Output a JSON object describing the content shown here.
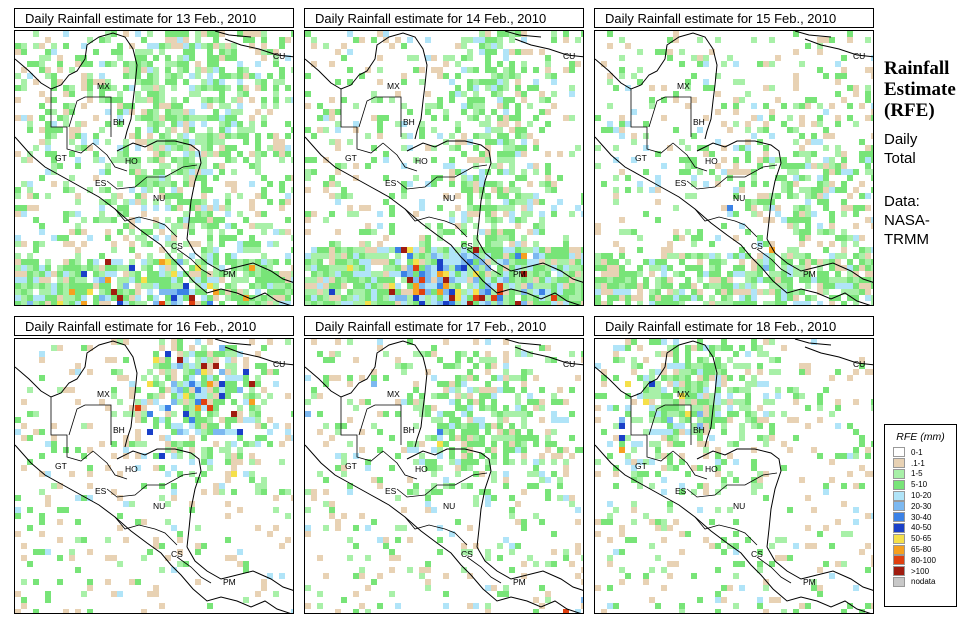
{
  "panels": [
    {
      "title": "Daily Rainfall estimate for  13 Feb., 2010",
      "intensity": "moderate"
    },
    {
      "title": "Daily Rainfall estimate for  14 Feb., 2010",
      "intensity": "heavy-south"
    },
    {
      "title": "Daily Rainfall estimate for  15 Feb., 2010",
      "intensity": "scattered"
    },
    {
      "title": "Daily Rainfall estimate for  16 Feb., 2010",
      "intensity": "north"
    },
    {
      "title": "Daily Rainfall estimate for  17 Feb., 2010",
      "intensity": "north-light"
    },
    {
      "title": "Daily Rainfall estimate for  18 Feb., 2010",
      "intensity": "northwest"
    }
  ],
  "country_labels": [
    "MX",
    "CU",
    "BH",
    "GT",
    "HO",
    "ES",
    "NU",
    "CS",
    "PM"
  ],
  "sidebar": {
    "title": "Rainfall\nEstimate\n(RFE)",
    "subtitle": "Daily\nTotal",
    "source": "Data:\nNASA-\nTRMM"
  },
  "legend": {
    "title": "RFE (mm)",
    "items": [
      {
        "label": "0-1",
        "color": "#ffffff"
      },
      {
        "label": ".1-1",
        "color": "#e8d2b4"
      },
      {
        "label": "1-5",
        "color": "#a8f0a8"
      },
      {
        "label": "5-10",
        "color": "#78e478"
      },
      {
        "label": "10-20",
        "color": "#b0e4f8"
      },
      {
        "label": "20-30",
        "color": "#7cb8f0"
      },
      {
        "label": "30-40",
        "color": "#3c82e6"
      },
      {
        "label": "40-50",
        "color": "#1a40c8"
      },
      {
        "label": "50-65",
        "color": "#f5e04a"
      },
      {
        "label": "65-80",
        "color": "#f5a020"
      },
      {
        "label": "80-100",
        "color": "#e04010"
      },
      {
        "label": ">100",
        "color": "#a01c10"
      },
      {
        "label": "nodata",
        "color": "#c8c8c8"
      }
    ]
  }
}
